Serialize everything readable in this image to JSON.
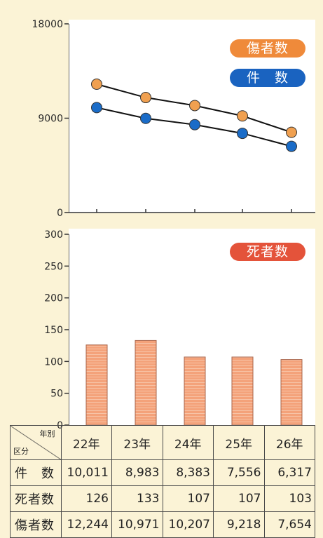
{
  "chart_data": [
    {
      "type": "line",
      "categories": [
        "22年",
        "23年",
        "24年",
        "25年",
        "26年"
      ],
      "series": [
        {
          "name": "傷者数",
          "color": "#f0a050",
          "values": [
            12244,
            10971,
            10207,
            9218,
            7654
          ]
        },
        {
          "name": "件 数",
          "color": "#1a6cc8",
          "values": [
            10011,
            8983,
            8383,
            7556,
            6317
          ]
        }
      ],
      "ylim": [
        0,
        18000
      ],
      "yticks": [
        "0",
        "9000",
        "18000"
      ]
    },
    {
      "type": "bar",
      "categories": [
        "22年",
        "23年",
        "24年",
        "25年",
        "26年"
      ],
      "series": [
        {
          "name": "死者数",
          "color": "#f4a27a",
          "values": [
            126,
            133,
            107,
            107,
            103
          ]
        }
      ],
      "ylim": [
        0,
        300
      ],
      "yticks": [
        "0",
        "50",
        "100",
        "150",
        "200",
        "250",
        "300"
      ]
    }
  ],
  "legend": {
    "injured": "傷者数",
    "cases": "件　数",
    "deaths": "死者数"
  },
  "table": {
    "corner_top": "年別",
    "corner_bottom": "区分",
    "years": [
      "22年",
      "23年",
      "24年",
      "25年",
      "26年"
    ],
    "rows": [
      {
        "label": "件　数",
        "values": [
          "10,011",
          "8,983",
          "8,383",
          "7,556",
          "6,317"
        ]
      },
      {
        "label": "死者数",
        "values": [
          "126",
          "133",
          "107",
          "107",
          "103"
        ]
      },
      {
        "label": "傷者数",
        "values": [
          "12,244",
          "10,971",
          "10,207",
          "9,218",
          "7,654"
        ]
      }
    ]
  },
  "colors": {
    "background": "#fbf3d6",
    "injured_pill": "#ef8a3a",
    "cases_pill": "#1a63c0",
    "deaths_pill": "#e4533a"
  }
}
